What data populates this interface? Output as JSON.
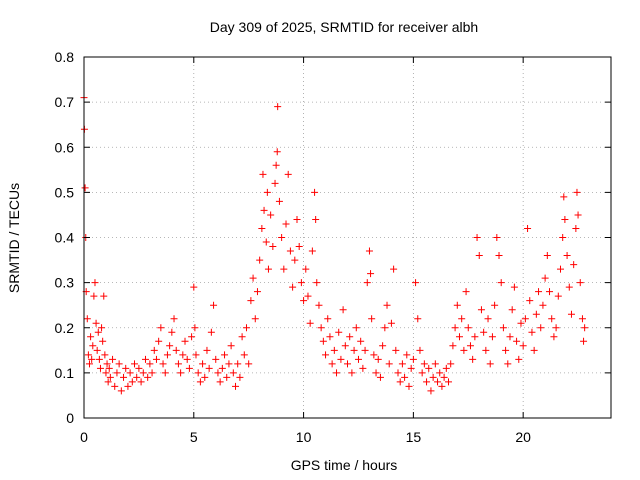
{
  "chart_data": {
    "type": "scatter",
    "title": "Day 309 of 2025, SRMTID for receiver albh",
    "xlabel": "GPS time / hours",
    "ylabel": "SRMTID / TECUs",
    "xlim": [
      0,
      24
    ],
    "ylim": [
      0,
      0.8
    ],
    "xticks": [
      0,
      5,
      10,
      15,
      20
    ],
    "xtick_labels": [
      "0",
      "5",
      "10",
      "15",
      "20"
    ],
    "yticks": [
      0,
      0.1,
      0.2,
      0.3,
      0.4,
      0.5,
      0.6,
      0.7,
      0.8
    ],
    "ytick_labels": [
      "0",
      "0.1",
      "0.2",
      "0.3",
      "0.4",
      "0.5",
      "0.6",
      "0.7",
      "0.8"
    ],
    "grid": true,
    "marker": "+",
    "color": "#ff0000",
    "series": [
      {
        "name": "SRMTID",
        "points": [
          [
            0.0,
            0.71
          ],
          [
            0.02,
            0.64
          ],
          [
            0.05,
            0.51
          ],
          [
            0.08,
            0.4
          ],
          [
            0.1,
            0.28
          ],
          [
            0.15,
            0.22
          ],
          [
            0.2,
            0.14
          ],
          [
            0.25,
            0.12
          ],
          [
            0.3,
            0.18
          ],
          [
            0.35,
            0.13
          ],
          [
            0.4,
            0.16
          ],
          [
            0.45,
            0.27
          ],
          [
            0.5,
            0.3
          ],
          [
            0.55,
            0.21
          ],
          [
            0.6,
            0.15
          ],
          [
            0.65,
            0.19
          ],
          [
            0.7,
            0.13
          ],
          [
            0.75,
            0.11
          ],
          [
            0.8,
            0.2
          ],
          [
            0.85,
            0.17
          ],
          [
            0.9,
            0.27
          ],
          [
            0.95,
            0.14
          ],
          [
            1.0,
            0.1
          ],
          [
            1.05,
            0.12
          ],
          [
            1.1,
            0.08
          ],
          [
            1.15,
            0.11
          ],
          [
            1.2,
            0.09
          ],
          [
            1.3,
            0.13
          ],
          [
            1.4,
            0.07
          ],
          [
            1.5,
            0.1
          ],
          [
            1.6,
            0.12
          ],
          [
            1.7,
            0.06
          ],
          [
            1.8,
            0.09
          ],
          [
            1.9,
            0.11
          ],
          [
            2.0,
            0.07
          ],
          [
            2.1,
            0.1
          ],
          [
            2.2,
            0.08
          ],
          [
            2.3,
            0.12
          ],
          [
            2.4,
            0.09
          ],
          [
            2.5,
            0.11
          ],
          [
            2.6,
            0.08
          ],
          [
            2.7,
            0.1
          ],
          [
            2.8,
            0.13
          ],
          [
            2.9,
            0.09
          ],
          [
            3.0,
            0.12
          ],
          [
            3.1,
            0.1
          ],
          [
            3.2,
            0.15
          ],
          [
            3.3,
            0.13
          ],
          [
            3.4,
            0.17
          ],
          [
            3.5,
            0.2
          ],
          [
            3.6,
            0.12
          ],
          [
            3.7,
            0.1
          ],
          [
            3.8,
            0.14
          ],
          [
            3.9,
            0.16
          ],
          [
            4.0,
            0.19
          ],
          [
            4.1,
            0.22
          ],
          [
            4.2,
            0.15
          ],
          [
            4.3,
            0.12
          ],
          [
            4.4,
            0.1
          ],
          [
            4.5,
            0.14
          ],
          [
            4.6,
            0.17
          ],
          [
            4.7,
            0.13
          ],
          [
            4.8,
            0.11
          ],
          [
            4.9,
            0.18
          ],
          [
            5.0,
            0.29
          ],
          [
            5.05,
            0.2
          ],
          [
            5.1,
            0.14
          ],
          [
            5.2,
            0.1
          ],
          [
            5.3,
            0.08
          ],
          [
            5.4,
            0.12
          ],
          [
            5.5,
            0.09
          ],
          [
            5.6,
            0.15
          ],
          [
            5.7,
            0.11
          ],
          [
            5.8,
            0.19
          ],
          [
            5.9,
            0.25
          ],
          [
            6.0,
            0.13
          ],
          [
            6.1,
            0.1
          ],
          [
            6.2,
            0.08
          ],
          [
            6.3,
            0.11
          ],
          [
            6.4,
            0.14
          ],
          [
            6.5,
            0.09
          ],
          [
            6.6,
            0.12
          ],
          [
            6.7,
            0.16
          ],
          [
            6.8,
            0.1
          ],
          [
            6.9,
            0.07
          ],
          [
            7.0,
            0.12
          ],
          [
            7.1,
            0.09
          ],
          [
            7.2,
            0.18
          ],
          [
            7.3,
            0.14
          ],
          [
            7.4,
            0.2
          ],
          [
            7.5,
            0.12
          ],
          [
            7.6,
            0.26
          ],
          [
            7.7,
            0.31
          ],
          [
            7.8,
            0.22
          ],
          [
            7.9,
            0.28
          ],
          [
            8.0,
            0.35
          ],
          [
            8.1,
            0.42
          ],
          [
            8.15,
            0.54
          ],
          [
            8.2,
            0.46
          ],
          [
            8.3,
            0.39
          ],
          [
            8.35,
            0.5
          ],
          [
            8.4,
            0.33
          ],
          [
            8.5,
            0.45
          ],
          [
            8.6,
            0.38
          ],
          [
            8.7,
            0.52
          ],
          [
            8.75,
            0.56
          ],
          [
            8.8,
            0.59
          ],
          [
            8.82,
            0.69
          ],
          [
            8.9,
            0.48
          ],
          [
            9.0,
            0.4
          ],
          [
            9.1,
            0.33
          ],
          [
            9.2,
            0.43
          ],
          [
            9.3,
            0.54
          ],
          [
            9.4,
            0.37
          ],
          [
            9.5,
            0.29
          ],
          [
            9.6,
            0.35
          ],
          [
            9.7,
            0.44
          ],
          [
            9.8,
            0.38
          ],
          [
            9.9,
            0.3
          ],
          [
            10.0,
            0.26
          ],
          [
            10.1,
            0.33
          ],
          [
            10.2,
            0.27
          ],
          [
            10.3,
            0.21
          ],
          [
            10.4,
            0.37
          ],
          [
            10.5,
            0.5
          ],
          [
            10.55,
            0.44
          ],
          [
            10.6,
            0.3
          ],
          [
            10.7,
            0.25
          ],
          [
            10.8,
            0.2
          ],
          [
            10.9,
            0.17
          ],
          [
            11.0,
            0.14
          ],
          [
            11.1,
            0.22
          ],
          [
            11.2,
            0.18
          ],
          [
            11.3,
            0.12
          ],
          [
            11.4,
            0.15
          ],
          [
            11.5,
            0.1
          ],
          [
            11.6,
            0.19
          ],
          [
            11.7,
            0.13
          ],
          [
            11.8,
            0.24
          ],
          [
            11.9,
            0.16
          ],
          [
            12.0,
            0.12
          ],
          [
            12.1,
            0.18
          ],
          [
            12.2,
            0.1
          ],
          [
            12.3,
            0.15
          ],
          [
            12.4,
            0.2
          ],
          [
            12.5,
            0.13
          ],
          [
            12.6,
            0.17
          ],
          [
            12.7,
            0.11
          ],
          [
            12.8,
            0.15
          ],
          [
            12.9,
            0.3
          ],
          [
            13.0,
            0.37
          ],
          [
            13.05,
            0.32
          ],
          [
            13.1,
            0.22
          ],
          [
            13.2,
            0.14
          ],
          [
            13.3,
            0.1
          ],
          [
            13.4,
            0.13
          ],
          [
            13.5,
            0.09
          ],
          [
            13.6,
            0.16
          ],
          [
            13.7,
            0.2
          ],
          [
            13.8,
            0.25
          ],
          [
            13.9,
            0.12
          ],
          [
            14.0,
            0.21
          ],
          [
            14.1,
            0.33
          ],
          [
            14.2,
            0.15
          ],
          [
            14.3,
            0.1
          ],
          [
            14.4,
            0.08
          ],
          [
            14.5,
            0.12
          ],
          [
            14.6,
            0.09
          ],
          [
            14.7,
            0.14
          ],
          [
            14.8,
            0.07
          ],
          [
            14.9,
            0.11
          ],
          [
            15.0,
            0.13
          ],
          [
            15.1,
            0.3
          ],
          [
            15.2,
            0.22
          ],
          [
            15.3,
            0.15
          ],
          [
            15.4,
            0.1
          ],
          [
            15.5,
            0.12
          ],
          [
            15.6,
            0.08
          ],
          [
            15.7,
            0.11
          ],
          [
            15.8,
            0.06
          ],
          [
            15.9,
            0.09
          ],
          [
            16.0,
            0.12
          ],
          [
            16.1,
            0.08
          ],
          [
            16.2,
            0.1
          ],
          [
            16.3,
            0.07
          ],
          [
            16.4,
            0.09
          ],
          [
            16.5,
            0.11
          ],
          [
            16.6,
            0.08
          ],
          [
            16.7,
            0.12
          ],
          [
            16.8,
            0.16
          ],
          [
            16.9,
            0.2
          ],
          [
            17.0,
            0.25
          ],
          [
            17.1,
            0.18
          ],
          [
            17.2,
            0.22
          ],
          [
            17.3,
            0.15
          ],
          [
            17.4,
            0.28
          ],
          [
            17.5,
            0.2
          ],
          [
            17.6,
            0.16
          ],
          [
            17.7,
            0.13
          ],
          [
            17.8,
            0.18
          ],
          [
            17.9,
            0.4
          ],
          [
            18.0,
            0.36
          ],
          [
            18.1,
            0.24
          ],
          [
            18.2,
            0.19
          ],
          [
            18.3,
            0.15
          ],
          [
            18.4,
            0.22
          ],
          [
            18.5,
            0.12
          ],
          [
            18.6,
            0.18
          ],
          [
            18.7,
            0.25
          ],
          [
            18.8,
            0.4
          ],
          [
            18.9,
            0.36
          ],
          [
            19.0,
            0.3
          ],
          [
            19.1,
            0.2
          ],
          [
            19.2,
            0.15
          ],
          [
            19.3,
            0.12
          ],
          [
            19.4,
            0.18
          ],
          [
            19.5,
            0.24
          ],
          [
            19.6,
            0.29
          ],
          [
            19.7,
            0.17
          ],
          [
            19.8,
            0.13
          ],
          [
            19.9,
            0.21
          ],
          [
            20.0,
            0.16
          ],
          [
            20.1,
            0.22
          ],
          [
            20.2,
            0.42
          ],
          [
            20.3,
            0.26
          ],
          [
            20.4,
            0.19
          ],
          [
            20.5,
            0.15
          ],
          [
            20.6,
            0.23
          ],
          [
            20.7,
            0.28
          ],
          [
            20.8,
            0.2
          ],
          [
            20.9,
            0.25
          ],
          [
            21.0,
            0.31
          ],
          [
            21.1,
            0.36
          ],
          [
            21.2,
            0.28
          ],
          [
            21.3,
            0.22
          ],
          [
            21.4,
            0.18
          ],
          [
            21.5,
            0.2
          ],
          [
            21.6,
            0.27
          ],
          [
            21.7,
            0.33
          ],
          [
            21.8,
            0.4
          ],
          [
            21.85,
            0.49
          ],
          [
            21.9,
            0.44
          ],
          [
            22.0,
            0.36
          ],
          [
            22.1,
            0.29
          ],
          [
            22.2,
            0.23
          ],
          [
            22.3,
            0.34
          ],
          [
            22.4,
            0.42
          ],
          [
            22.45,
            0.5
          ],
          [
            22.5,
            0.45
          ],
          [
            22.6,
            0.3
          ],
          [
            22.7,
            0.22
          ],
          [
            22.75,
            0.17
          ],
          [
            22.8,
            0.2
          ]
        ]
      }
    ]
  }
}
